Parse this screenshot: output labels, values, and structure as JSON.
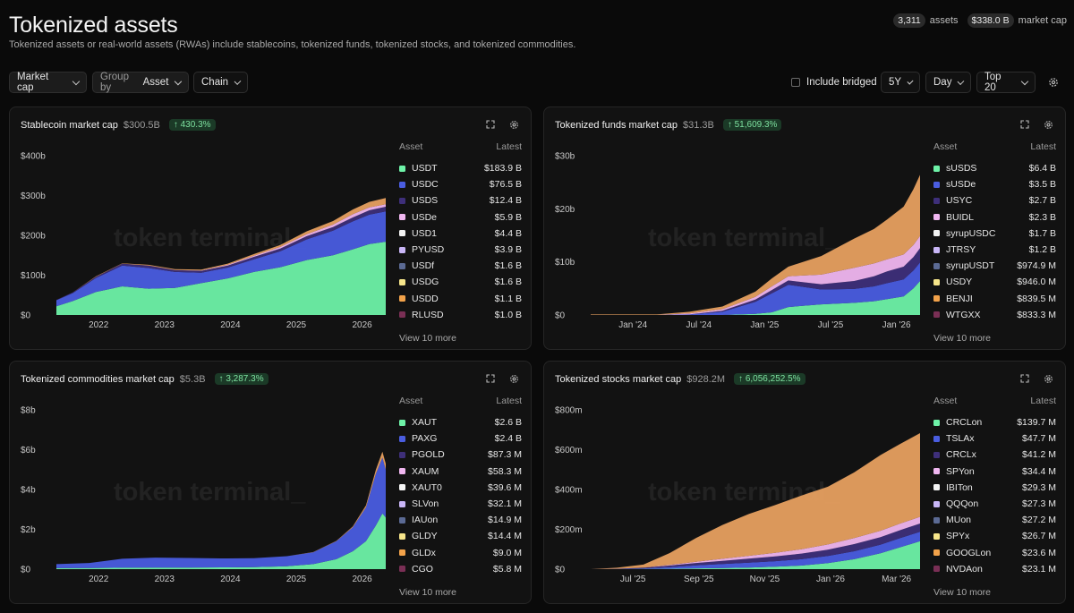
{
  "header": {
    "title": "Tokenized assets",
    "subtitle": "Tokenized assets or real-world assets (RWAs) include stablecoins, tokenized funds, tokenized stocks, and tokenized commodities.",
    "assets_count": "3,311",
    "assets_label": "assets",
    "market_cap_value": "$338.0 B",
    "market_cap_label": "market cap"
  },
  "toolbar": {
    "metric": "Market cap",
    "group_prefix": "Group by",
    "group_value": "Asset",
    "chain": "Chain",
    "include_bridged": "Include bridged",
    "range": "5Y",
    "granularity": "Day",
    "top": "Top 20"
  },
  "watermark": "token terminal_",
  "legend_headers": {
    "asset": "Asset",
    "latest": "Latest"
  },
  "cards": [
    {
      "title": "Stablecoin market cap",
      "value": "$300.5B",
      "change": "↑ 430.3%",
      "view_more": "View 10 more",
      "legend": [
        {
          "name": "USDT",
          "value": "$183.9 B",
          "color": "#6ef2a8"
        },
        {
          "name": "USDC",
          "value": "$76.5 B",
          "color": "#4a5de0"
        },
        {
          "name": "USDS",
          "value": "$12.4 B",
          "color": "#3e2f7a"
        },
        {
          "name": "USDe",
          "value": "$5.9 B",
          "color": "#f0b6f0"
        },
        {
          "name": "USD1",
          "value": "$4.4 B",
          "color": "#f4f4f4"
        },
        {
          "name": "PYUSD",
          "value": "$3.9 B",
          "color": "#c9b6f7"
        },
        {
          "name": "USDf",
          "value": "$1.6 B",
          "color": "#5b6a94"
        },
        {
          "name": "USDG",
          "value": "$1.6 B",
          "color": "#f6e58a"
        },
        {
          "name": "USDD",
          "value": "$1.1 B",
          "color": "#f2a24a"
        },
        {
          "name": "RLUSD",
          "value": "$1.0 B",
          "color": "#7a2f55"
        }
      ]
    },
    {
      "title": "Tokenized funds market cap",
      "value": "$31.3B",
      "change": "↑ 51,609.3%",
      "view_more": "View 10 more",
      "legend": [
        {
          "name": "sUSDS",
          "value": "$6.4 B",
          "color": "#6ef2a8"
        },
        {
          "name": "sUSDe",
          "value": "$3.5 B",
          "color": "#4a5de0"
        },
        {
          "name": "USYC",
          "value": "$2.7 B",
          "color": "#3e2f7a"
        },
        {
          "name": "BUIDL",
          "value": "$2.3 B",
          "color": "#f0b6f0"
        },
        {
          "name": "syrupUSDC",
          "value": "$1.7 B",
          "color": "#f4f4f4"
        },
        {
          "name": "JTRSY",
          "value": "$1.2 B",
          "color": "#c9b6f7"
        },
        {
          "name": "syrupUSDT",
          "value": "$974.9 M",
          "color": "#5b6a94"
        },
        {
          "name": "USDY",
          "value": "$946.0 M",
          "color": "#f6e58a"
        },
        {
          "name": "BENJI",
          "value": "$839.5 M",
          "color": "#f2a24a"
        },
        {
          "name": "WTGXX",
          "value": "$833.3 M",
          "color": "#7a2f55"
        }
      ]
    },
    {
      "title": "Tokenized commodities market cap",
      "value": "$5.3B",
      "change": "↑ 3,287.3%",
      "view_more": "View 10 more",
      "legend": [
        {
          "name": "XAUT",
          "value": "$2.6 B",
          "color": "#6ef2a8"
        },
        {
          "name": "PAXG",
          "value": "$2.4 B",
          "color": "#4a5de0"
        },
        {
          "name": "PGOLD",
          "value": "$87.3 M",
          "color": "#3e2f7a"
        },
        {
          "name": "XAUM",
          "value": "$58.3 M",
          "color": "#f0b6f0"
        },
        {
          "name": "XAUT0",
          "value": "$39.6 M",
          "color": "#f4f4f4"
        },
        {
          "name": "SLVon",
          "value": "$32.1 M",
          "color": "#c9b6f7"
        },
        {
          "name": "IAUon",
          "value": "$14.9 M",
          "color": "#5b6a94"
        },
        {
          "name": "GLDY",
          "value": "$14.4 M",
          "color": "#f6e58a"
        },
        {
          "name": "GLDx",
          "value": "$9.0 M",
          "color": "#f2a24a"
        },
        {
          "name": "CGO",
          "value": "$5.8 M",
          "color": "#7a2f55"
        }
      ]
    },
    {
      "title": "Tokenized stocks market cap",
      "value": "$928.2M",
      "change": "↑ 6,056,252.5%",
      "view_more": "View 10 more",
      "legend": [
        {
          "name": "CRCLon",
          "value": "$139.7 M",
          "color": "#6ef2a8"
        },
        {
          "name": "TSLAx",
          "value": "$47.7 M",
          "color": "#4a5de0"
        },
        {
          "name": "CRCLx",
          "value": "$41.2 M",
          "color": "#3e2f7a"
        },
        {
          "name": "SPYon",
          "value": "$34.4 M",
          "color": "#f0b6f0"
        },
        {
          "name": "IBITon",
          "value": "$29.3 M",
          "color": "#f4f4f4"
        },
        {
          "name": "QQQon",
          "value": "$27.3 M",
          "color": "#c9b6f7"
        },
        {
          "name": "MUon",
          "value": "$27.2 M",
          "color": "#5b6a94"
        },
        {
          "name": "SPYx",
          "value": "$26.7 M",
          "color": "#f6e58a"
        },
        {
          "name": "GOOGLon",
          "value": "$23.6 M",
          "color": "#f2a24a"
        },
        {
          "name": "NVDAon",
          "value": "$23.1 M",
          "color": "#7a2f55"
        }
      ]
    }
  ],
  "chart_data": [
    {
      "type": "area",
      "title": "Stablecoin market cap",
      "y_ticks": [
        "$0",
        "$100b",
        "$200b",
        "$300b",
        "$400b"
      ],
      "x_ticks": [
        "2022",
        "2023",
        "2024",
        "2025",
        "2026"
      ],
      "ylim": [
        0,
        400
      ],
      "x": [
        0,
        0.05,
        0.12,
        0.2,
        0.28,
        0.36,
        0.44,
        0.52,
        0.6,
        0.68,
        0.76,
        0.84,
        0.9,
        0.95,
        1.0
      ],
      "series": [
        {
          "name": "USDT",
          "values": [
            22,
            35,
            58,
            72,
            66,
            68,
            80,
            92,
            108,
            120,
            138,
            150,
            165,
            178,
            184
          ]
        },
        {
          "name": "USDC",
          "values": [
            15,
            20,
            35,
            52,
            52,
            40,
            26,
            27,
            32,
            40,
            52,
            62,
            70,
            74,
            76
          ]
        },
        {
          "name": "USDS",
          "values": [
            1,
            2,
            3,
            5,
            6,
            5,
            5,
            5,
            6,
            7,
            8,
            9,
            10,
            11,
            12
          ]
        },
        {
          "name": "USDe",
          "values": [
            0,
            0,
            0,
            0,
            0,
            0,
            1,
            2,
            3,
            4,
            5,
            6,
            8,
            7,
            6
          ]
        },
        {
          "name": "Other",
          "values": [
            0,
            0,
            1,
            1,
            2,
            2,
            2,
            3,
            4,
            5,
            7,
            9,
            12,
            14,
            16
          ]
        }
      ]
    },
    {
      "type": "area",
      "title": "Tokenized funds market cap",
      "y_ticks": [
        "$0",
        "$10b",
        "$20b",
        "$30b"
      ],
      "x_ticks": [
        "Jan '24",
        "Jul '24",
        "Jan '25",
        "Jul '25",
        "Jan '26"
      ],
      "ylim": [
        0,
        30
      ],
      "x": [
        0,
        0.1,
        0.2,
        0.3,
        0.4,
        0.5,
        0.55,
        0.6,
        0.7,
        0.8,
        0.86,
        0.9,
        0.95,
        0.98,
        1.0
      ],
      "series": [
        {
          "name": "sUSDS",
          "values": [
            0,
            0,
            0,
            0,
            0,
            0.2,
            0.5,
            1.5,
            2.0,
            2.3,
            2.6,
            3.0,
            3.5,
            5.0,
            6.4
          ]
        },
        {
          "name": "sUSDe",
          "values": [
            0,
            0,
            0,
            0.1,
            0.6,
            2.3,
            3.6,
            4.2,
            2.8,
            2.6,
            2.8,
            3.0,
            3.2,
            3.4,
            3.5
          ]
        },
        {
          "name": "USYC",
          "values": [
            0,
            0,
            0,
            0,
            0.2,
            0.4,
            0.6,
            0.8,
            1.0,
            1.5,
            1.9,
            2.2,
            2.4,
            2.5,
            2.7
          ]
        },
        {
          "name": "BUIDL",
          "values": [
            0,
            0,
            0,
            0.2,
            0.3,
            0.5,
            0.7,
            0.8,
            1.8,
            2.5,
            2.4,
            2.3,
            2.3,
            2.3,
            2.3
          ]
        },
        {
          "name": "Other",
          "values": [
            0.1,
            0.1,
            0.1,
            0.3,
            0.5,
            1.0,
            1.5,
            1.8,
            3.5,
            5.5,
            6.5,
            7.5,
            9.0,
            10.5,
            11.5
          ]
        }
      ]
    },
    {
      "type": "area",
      "title": "Tokenized commodities market cap",
      "y_ticks": [
        "$0",
        "$2b",
        "$4b",
        "$6b",
        "$8b"
      ],
      "x_ticks": [
        "2022",
        "2023",
        "2024",
        "2025",
        "2026"
      ],
      "ylim": [
        0,
        8
      ],
      "x": [
        0,
        0.1,
        0.2,
        0.3,
        0.4,
        0.5,
        0.6,
        0.7,
        0.78,
        0.85,
        0.9,
        0.94,
        0.97,
        0.99,
        1.0
      ],
      "series": [
        {
          "name": "XAUT",
          "values": [
            0.05,
            0.06,
            0.07,
            0.08,
            0.08,
            0.09,
            0.1,
            0.15,
            0.25,
            0.5,
            0.9,
            1.4,
            2.2,
            2.8,
            2.6
          ]
        },
        {
          "name": "PAXG",
          "values": [
            0.2,
            0.25,
            0.45,
            0.5,
            0.48,
            0.45,
            0.45,
            0.5,
            0.6,
            0.9,
            1.2,
            1.7,
            2.6,
            2.8,
            2.4
          ]
        },
        {
          "name": "Other",
          "values": [
            0,
            0,
            0,
            0,
            0,
            0,
            0,
            0,
            0.01,
            0.02,
            0.05,
            0.1,
            0.2,
            0.3,
            0.3
          ]
        }
      ]
    },
    {
      "type": "area",
      "title": "Tokenized stocks market cap",
      "y_ticks": [
        "$0",
        "$200m",
        "$400m",
        "$600m",
        "$800m"
      ],
      "x_ticks": [
        "Jul '25",
        "Sep '25",
        "Nov '25",
        "Jan '26",
        "Mar '26"
      ],
      "ylim": [
        0,
        800
      ],
      "x": [
        0,
        0.08,
        0.16,
        0.24,
        0.32,
        0.4,
        0.48,
        0.56,
        0.64,
        0.72,
        0.8,
        0.88,
        0.94,
        1.0
      ],
      "series": [
        {
          "name": "CRCLon",
          "values": [
            0,
            0,
            1,
            2,
            4,
            6,
            8,
            12,
            18,
            30,
            50,
            80,
            110,
            140
          ]
        },
        {
          "name": "TSLAx",
          "values": [
            0,
            1,
            3,
            8,
            15,
            20,
            25,
            28,
            32,
            36,
            40,
            43,
            46,
            48
          ]
        },
        {
          "name": "CRCLx",
          "values": [
            0,
            1,
            3,
            8,
            12,
            16,
            20,
            24,
            28,
            32,
            36,
            38,
            40,
            41
          ]
        },
        {
          "name": "SPYon",
          "values": [
            0,
            0,
            1,
            3,
            6,
            10,
            14,
            18,
            22,
            26,
            30,
            32,
            33,
            34
          ]
        },
        {
          "name": "Other",
          "values": [
            0,
            5,
            15,
            60,
            120,
            170,
            210,
            240,
            270,
            290,
            330,
            380,
            400,
            420
          ]
        }
      ]
    }
  ],
  "colors": {
    "background": "#0a0a0a",
    "card": "#121212",
    "badge_bg": "#1b3a27",
    "badge_text": "#7ee2a0",
    "other_series": "#e7a060"
  }
}
